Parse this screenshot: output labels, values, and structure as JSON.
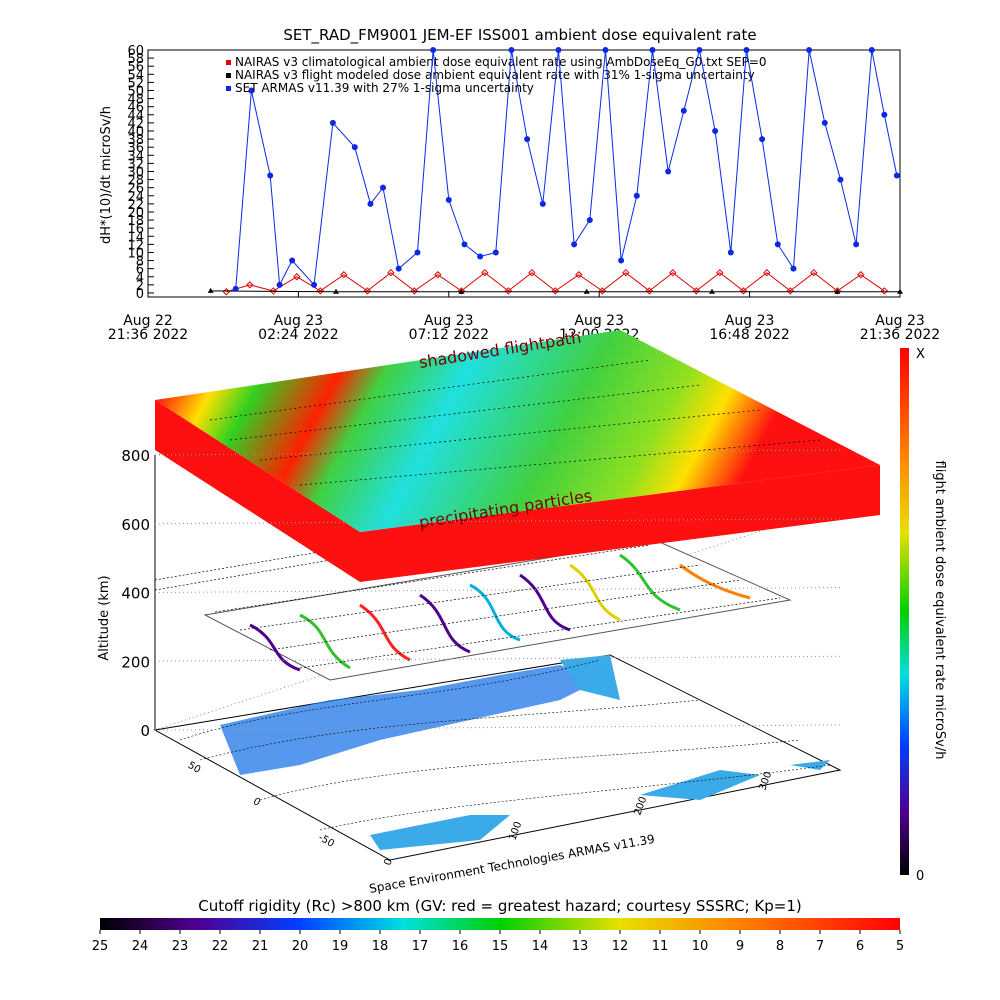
{
  "chart_data": [
    {
      "type": "line",
      "title": "SET_RAD_FM9001  JEM-EF ISS001 ambient dose equivalent rate",
      "y_label": "dH*(10)/dt microSv/h",
      "xlim": [
        0,
        24
      ],
      "xticks": [
        {
          "value": 0,
          "label": "Aug 22\n21:36 2022"
        },
        {
          "value": 4.8,
          "label": "Aug 23\n02:24 2022"
        },
        {
          "value": 9.6,
          "label": "Aug 23\n07:12 2022"
        },
        {
          "value": 14.4,
          "label": "Aug 23\n12:00 2022"
        },
        {
          "value": 19.2,
          "label": "Aug 23\n16:48 2022"
        },
        {
          "value": 24,
          "label": "Aug 23\n21:36 2022"
        }
      ],
      "ylim": [
        -1,
        60
      ],
      "yticks": [
        0,
        2,
        4,
        6,
        8,
        10,
        12,
        14,
        16,
        18,
        20,
        22,
        24,
        26,
        28,
        30,
        32,
        34,
        36,
        38,
        40,
        42,
        44,
        46,
        48,
        50,
        52,
        54,
        56,
        58,
        60
      ],
      "series": [
        {
          "name": "NAIRAS v3 climatological ambient dose equivalent rate using AmbDoseEq_G0.txt SEP=0",
          "color": "#e00000",
          "marker": "diamond",
          "x": [
            2.5,
            3.25,
            4.0,
            4.75,
            5.5,
            6.25,
            7.0,
            7.75,
            8.5,
            9.25,
            10.0,
            10.75,
            11.5,
            12.25,
            13.0,
            13.75,
            14.5,
            15.25,
            16.0,
            16.75,
            17.5,
            18.25,
            19.0,
            19.75,
            20.5,
            21.25,
            22.0,
            22.75,
            23.5
          ],
          "values": [
            0.3,
            2,
            0.5,
            4,
            0.5,
            4.5,
            0.5,
            5,
            0.5,
            4.5,
            0.5,
            5,
            0.5,
            5,
            0.5,
            4.5,
            0.5,
            5,
            0.5,
            5,
            0.5,
            5,
            0.5,
            5,
            0.5,
            5,
            0.5,
            4.5,
            0.5
          ]
        },
        {
          "name": "NAIRAS v3 flight modeled dose ambient equivalent rate with 31% 1-sigma uncertainty",
          "color": "#000000",
          "marker": "triangle",
          "x": [
            2.0,
            6.0,
            10.0,
            14.0,
            18.0,
            22.0,
            24.0
          ],
          "values": [
            0.5,
            0.3,
            0.3,
            0.3,
            0.3,
            0.3,
            0.3
          ]
        },
        {
          "name": "SET ARMAS v11.39 with 27% 1-sigma uncertainty",
          "color": "#0a28e6",
          "marker": "circle",
          "x": [
            2.8,
            3.3,
            3.9,
            4.2,
            4.6,
            5.3,
            5.9,
            6.6,
            7.1,
            7.5,
            8.0,
            8.6,
            9.1,
            9.6,
            10.1,
            10.6,
            11.1,
            11.6,
            12.1,
            12.6,
            13.1,
            13.6,
            14.1,
            14.6,
            15.1,
            15.6,
            16.1,
            16.6,
            17.1,
            17.6,
            18.1,
            18.6,
            19.1,
            19.6,
            20.1,
            20.6,
            21.1,
            21.6,
            22.1,
            22.6,
            23.1,
            23.5,
            23.9
          ],
          "values": [
            1,
            50,
            29,
            2,
            8,
            2,
            42,
            36,
            22,
            26,
            6,
            10,
            60,
            23,
            12,
            9,
            10,
            60,
            38,
            22,
            60,
            12,
            18,
            60,
            8,
            24,
            60,
            30,
            45,
            60,
            40,
            10,
            60,
            38,
            12,
            6,
            60,
            42,
            28,
            12,
            60,
            44,
            29
          ]
        }
      ]
    }
  ],
  "scene": {
    "labels": [
      "shadowed flightpath",
      "precipitating particles"
    ],
    "altitude_label": "Altitude (km)",
    "altitude_lim": [
      0,
      800
    ],
    "altitude_ticks": [
      0,
      200,
      400,
      600,
      800
    ],
    "lat_lim": [
      90,
      -90
    ],
    "lat_ticks": [
      50,
      0,
      -50
    ],
    "lon_lim": [
      0,
      360
    ],
    "lon_ticks": [
      0,
      100,
      200,
      300
    ],
    "credit": "Space Environment Technologies ARMAS v11.39"
  },
  "colorbar_right": {
    "label": "flight ambient dose equivalent rate microSv/h",
    "top": "X",
    "bottom": 0
  },
  "colorbar_bottom": {
    "title": "Cutoff rigidity (Rc) >800 km (GV: red = greatest hazard; courtesy SSSRC; Kp=1)",
    "lim": [
      25,
      5
    ],
    "ticks": [
      25,
      24,
      23,
      22,
      21,
      20,
      19,
      18,
      17,
      16,
      15,
      14,
      13,
      12,
      11,
      10,
      9,
      8,
      7,
      6,
      5
    ]
  }
}
